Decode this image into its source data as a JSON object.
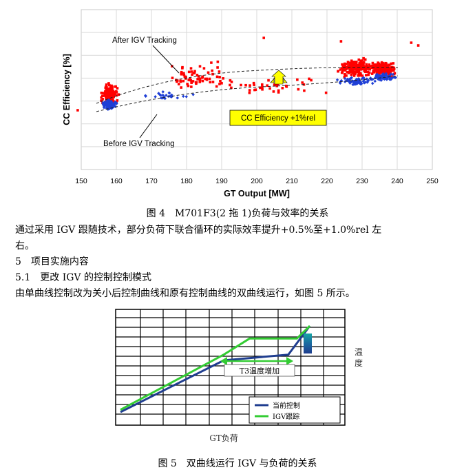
{
  "colors": {
    "after_points": "#ff0000",
    "before_points": "#1f3fd6",
    "callout_fill": "#ffff00",
    "arrow_fill": "#ffff00",
    "current_line": "#1f3d8f",
    "igv_line": "#33cc33"
  },
  "figure4": {
    "chart_data": {
      "type": "scatter",
      "xlabel": "GT Output [MW]",
      "ylabel": "CC Efficiency [%]",
      "xlim": [
        150,
        250
      ],
      "xticks": [
        "150",
        "160",
        "170",
        "180",
        "190",
        "200",
        "210",
        "220",
        "230",
        "240",
        "250"
      ],
      "grid": true,
      "series": [
        {
          "name": "After IGV Tracking",
          "cluster_centers_x": [
            158,
            182,
            228,
            236
          ],
          "density": "high"
        },
        {
          "name": "Before IGV Tracking",
          "cluster_centers_x": [
            158,
            228
          ],
          "density": "medium"
        }
      ],
      "annotations": [
        "After IGV Tracking",
        "Before IGV Tracking",
        "CC Efficiency +1%rel"
      ]
    },
    "caption": "图 4　M701F3(2 拖 1)负荷与效率的关系"
  },
  "body_text": {
    "line1": "通过采用 IGV 跟随技术，部分负荷下联合循环的实际效率提升+0.5%至+1.0%rel 左",
    "line2": "右。",
    "section5": "5　项目实施内容",
    "section51": "5.1　更改 IGV 的控制控制模式",
    "line3": "由单曲线控制改为关小后控制曲线和原有控制曲线的双曲线运行，如图 5 所示。"
  },
  "figure5": {
    "chart_data": {
      "type": "line",
      "xlabel": "GT负荷",
      "ylabel": "温度",
      "annotation": "T3温度增加",
      "series": [
        {
          "name": "当前控制",
          "x": [
            0,
            0.48,
            0.78,
            0.88
          ],
          "y": [
            0.05,
            0.5,
            0.55,
            0.8
          ]
        },
        {
          "name": "IGV跟踪",
          "x": [
            0,
            0.48,
            0.6,
            0.82,
            0.88
          ],
          "y": [
            0.07,
            0.55,
            0.69,
            0.69,
            0.8
          ]
        }
      ]
    },
    "caption": "图 5　双曲线运行 IGV 与负荷的关系"
  }
}
